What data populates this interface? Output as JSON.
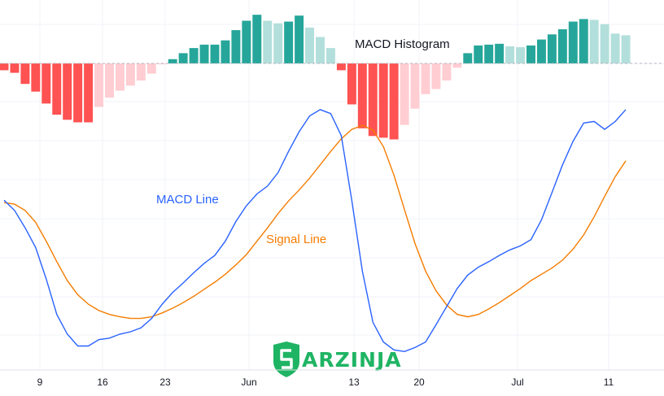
{
  "chart_data": {
    "type": "line",
    "x_ticks": [
      "9",
      "16",
      "23",
      "Jun",
      "13",
      "20",
      "Jul",
      "11"
    ],
    "annotations": {
      "histogram": "MACD Histogram",
      "macd": "MACD Line",
      "signal": "Signal Line"
    },
    "colors": {
      "macd": "#2962ff",
      "signal": "#f57c00",
      "hist_pos_strong": "#26a69a",
      "hist_pos_weak": "#b2dfdb",
      "hist_neg_strong": "#ff5252",
      "hist_neg_weak": "#ffcdd2",
      "grid": "#f0f3fa",
      "logo": "#1fb464"
    },
    "grid": true,
    "series": [
      {
        "key": "macd",
        "values": [
          200,
          187,
          165,
          140,
          100,
          55,
          30,
          15,
          15,
          23,
          25,
          30,
          33,
          38,
          50,
          68,
          83,
          95,
          108,
          120,
          130,
          148,
          173,
          193,
          208,
          218,
          235,
          262,
          287,
          307,
          315,
          310,
          282,
          200,
          110,
          45,
          20,
          10,
          8,
          13,
          20,
          42,
          65,
          88,
          105,
          115,
          122,
          130,
          137,
          142,
          150,
          175,
          210,
          245,
          275,
          298,
          300,
          290,
          300,
          315
        ]
      },
      {
        "key": "signal",
        "values": [
          197,
          195,
          187,
          172,
          148,
          122,
          98,
          80,
          68,
          60,
          55,
          52,
          50,
          50,
          52,
          57,
          63,
          70,
          78,
          87,
          96,
          106,
          118,
          131,
          148,
          165,
          183,
          199,
          213,
          228,
          245,
          262,
          278,
          290,
          295,
          289,
          268,
          232,
          188,
          145,
          110,
          85,
          67,
          55,
          52,
          55,
          62,
          70,
          79,
          88,
          98,
          106,
          114,
          124,
          138,
          156,
          179,
          205,
          230,
          250
        ]
      }
    ],
    "histogram": [
      -8,
      -11,
      -24,
      -33,
      -47,
      -60,
      -66,
      -69,
      -69,
      -51,
      -40,
      -32,
      -26,
      -20,
      -12,
      -1,
      5,
      12,
      18,
      22,
      22,
      27,
      39,
      50,
      57,
      50,
      47,
      49,
      56,
      42,
      31,
      18,
      -8,
      -48,
      -76,
      -85,
      -87,
      -89,
      -72,
      -53,
      -36,
      -30,
      -20,
      -5,
      12,
      21,
      22,
      23,
      20,
      19,
      21,
      28,
      34,
      40,
      49,
      52,
      51,
      46,
      35,
      33
    ]
  },
  "watermark": {
    "text": "ARZINJA"
  }
}
